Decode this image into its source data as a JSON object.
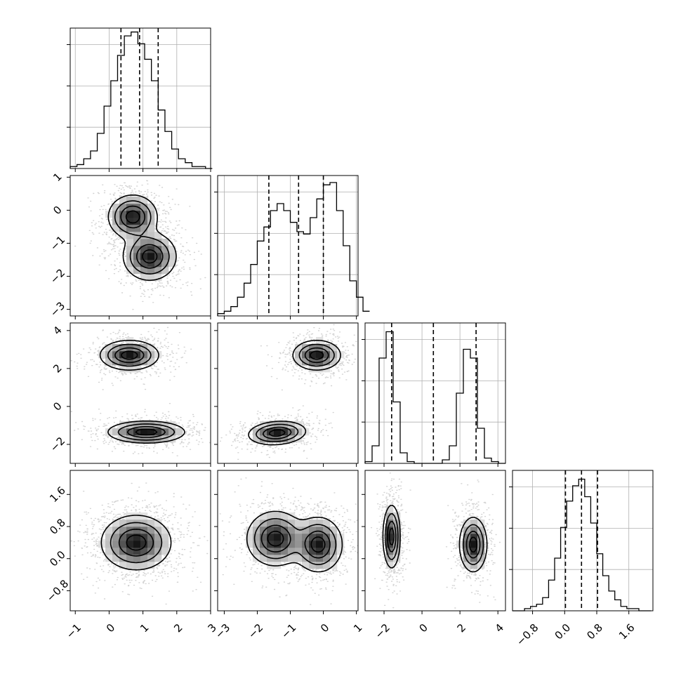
{
  "chart_data": {
    "type": "corner",
    "title": "",
    "n_params": 4,
    "colors": {
      "line": "#000000",
      "grid": "#b0b0b0",
      "density_dark": "#111111",
      "samples": "#808080"
    },
    "grid": true,
    "quantiles": [
      0.16,
      0.5,
      0.84
    ],
    "params": [
      {
        "ticks": [
          -1,
          0,
          1,
          2,
          3
        ],
        "tick_labels": [
          "−1",
          "0",
          "1",
          "2",
          "3"
        ],
        "range": [
          -1.15,
          3.0
        ],
        "quantile_values": [
          0.35,
          0.9,
          1.45
        ],
        "hist": {
          "edges_start": -1.15,
          "bin_width": 0.2,
          "counts": [
            1,
            2,
            5,
            9,
            18,
            32,
            45,
            58,
            68,
            70,
            64,
            56,
            45,
            30,
            19,
            10,
            5,
            3,
            1,
            1,
            0
          ],
          "ymax": 72
        }
      },
      {
        "ticks": [
          -3,
          -2,
          -1,
          0,
          1
        ],
        "tick_labels": [
          "−3",
          "−2",
          "−1",
          "0",
          "1"
        ],
        "range": [
          -3.2,
          1.05
        ],
        "quantile_values": [
          -1.65,
          -0.75,
          0.0
        ],
        "hist": {
          "edges_start": -3.2,
          "bin_width": 0.2,
          "counts": [
            1,
            2,
            4,
            8,
            14,
            22,
            32,
            38,
            45,
            48,
            45,
            40,
            36,
            35,
            42,
            50,
            56,
            57,
            45,
            30,
            15,
            8,
            2
          ],
          "ymax": 60
        }
      },
      {
        "ticks": [
          -2,
          0,
          2,
          4
        ],
        "tick_labels": [
          "−2",
          "0",
          "2",
          "4"
        ],
        "range": [
          -3.0,
          4.4
        ],
        "quantile_values": [
          -1.6,
          0.6,
          2.85
        ],
        "hist": {
          "edges_start": -3.0,
          "bin_width": 0.37,
          "counts": [
            1,
            10,
            60,
            75,
            35,
            6,
            1,
            0,
            0,
            0,
            0,
            2,
            10,
            40,
            65,
            60,
            20,
            3,
            1,
            0
          ],
          "ymax": 80
        }
      },
      {
        "ticks": [
          -0.8,
          0.0,
          0.8,
          1.6
        ],
        "tick_labels": [
          "−0.8",
          "0.0",
          "0.8",
          "1.6"
        ],
        "range": [
          -1.3,
          2.2
        ],
        "quantile_values": [
          0.02,
          0.42,
          0.82
        ],
        "hist": {
          "edges_start": -1.3,
          "bin_width": 0.15,
          "counts": [
            0,
            0,
            1,
            2,
            3,
            6,
            14,
            24,
            38,
            50,
            57,
            60,
            52,
            40,
            26,
            16,
            9,
            5,
            2,
            1,
            1,
            0,
            0
          ],
          "ymax": 64
        }
      }
    ],
    "pairs": [
      {
        "x": 0,
        "y": 1,
        "modes": [
          {
            "mx": 0.7,
            "my": -0.2,
            "sx": 0.35,
            "sy": 0.32,
            "rho": 0.0,
            "w": 0.5
          },
          {
            "mx": 1.2,
            "my": -1.4,
            "sx": 0.38,
            "sy": 0.35,
            "rho": 0.0,
            "w": 0.5
          }
        ]
      },
      {
        "x": 0,
        "y": 2,
        "modes": [
          {
            "mx": 0.6,
            "my": 2.7,
            "sx": 0.42,
            "sy": 0.38,
            "rho": 0.0,
            "w": 0.5
          },
          {
            "mx": 1.1,
            "my": -1.35,
            "sx": 0.55,
            "sy": 0.28,
            "rho": 0.0,
            "w": 0.5
          }
        ]
      },
      {
        "x": 0,
        "y": 3,
        "modes": [
          {
            "mx": 0.8,
            "my": 0.4,
            "sx": 0.5,
            "sy": 0.33,
            "rho": 0.0,
            "w": 1.0
          }
        ]
      },
      {
        "x": 1,
        "y": 2,
        "modes": [
          {
            "mx": -0.2,
            "my": 2.7,
            "sx": 0.35,
            "sy": 0.38,
            "rho": 0.0,
            "w": 0.5
          },
          {
            "mx": -1.4,
            "my": -1.4,
            "sx": 0.42,
            "sy": 0.3,
            "rho": 0.15,
            "w": 0.5
          }
        ]
      },
      {
        "x": 1,
        "y": 3,
        "modes": [
          {
            "mx": -1.45,
            "my": 0.5,
            "sx": 0.42,
            "sy": 0.33,
            "rho": 0.0,
            "w": 0.5
          },
          {
            "mx": -0.15,
            "my": 0.35,
            "sx": 0.35,
            "sy": 0.33,
            "rho": 0.0,
            "w": 0.5
          }
        ]
      },
      {
        "x": 2,
        "y": 3,
        "modes": [
          {
            "mx": -1.6,
            "my": 0.55,
            "sx": 0.22,
            "sy": 0.38,
            "rho": 0.0,
            "w": 0.5
          },
          {
            "mx": 2.7,
            "my": 0.35,
            "sx": 0.35,
            "sy": 0.33,
            "rho": 0.0,
            "w": 0.5
          }
        ]
      }
    ]
  }
}
